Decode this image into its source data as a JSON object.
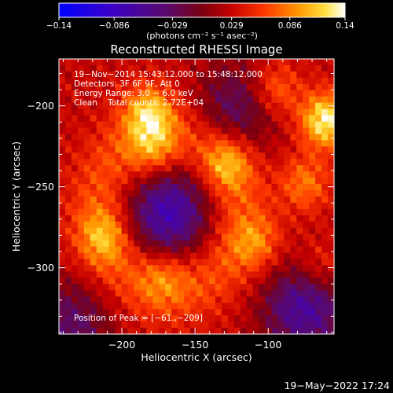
{
  "chart_data": {
    "type": "heatmap",
    "title": "Reconstructed RHESSI Image",
    "xlabel": "Heliocentric X (arcsec)",
    "ylabel": "Heliocentric Y (arcsec)",
    "xlim": [
      -243,
      -55
    ],
    "ylim": [
      -341,
      -171
    ],
    "x_ticks": [
      -200,
      -150,
      -100
    ],
    "y_ticks": [
      -200,
      -250,
      -300
    ],
    "x_tick_labels": [
      "−200",
      "−150",
      "−100"
    ],
    "y_tick_labels": [
      "−200",
      "−250",
      "−300"
    ],
    "colorbar": {
      "range": [
        -0.14,
        0.14
      ],
      "ticks": [
        -0.14,
        -0.086,
        -0.029,
        0.029,
        0.086,
        0.14
      ],
      "tick_labels": [
        "−0.14",
        "−0.086",
        "−0.029",
        "0.029",
        "0.086",
        "0.14"
      ],
      "units": "(photons cm⁻² s⁻¹ asec⁻²)",
      "colormap": "blue-purple-red-orange-yellow-white"
    },
    "annotations": [
      "19−Nov−2014 15:43:12.000 to 15:48:12.000",
      "Detectors: 3F 6F 9F, Att 0",
      "Energy Range: 3.0 − 6.0 keV",
      "Clean    Total counts: 2.72E+04"
    ],
    "peak_label": "Position of Peak = [−61.,−209]",
    "peak": {
      "x": -61,
      "y": -209
    },
    "bright_regions": [
      {
        "x": -61,
        "y": -209,
        "level": 0.14
      },
      {
        "x": -182,
        "y": -204,
        "level": 0.1
      },
      {
        "x": -95,
        "y": -190,
        "level": 0.07
      },
      {
        "x": -128,
        "y": -235,
        "level": 0.08
      },
      {
        "x": -178,
        "y": -228,
        "level": 0.06
      },
      {
        "x": -212,
        "y": -281,
        "level": 0.07
      },
      {
        "x": -172,
        "y": -305,
        "level": 0.05
      },
      {
        "x": -108,
        "y": -285,
        "level": 0.06
      },
      {
        "x": -75,
        "y": -248,
        "level": 0.07
      },
      {
        "x": -65,
        "y": -300,
        "level": 0.05
      }
    ],
    "dark_regions": [
      {
        "x": -168,
        "y": -266,
        "level": -0.1
      },
      {
        "x": -75,
        "y": -325,
        "level": -0.09
      },
      {
        "x": -122,
        "y": -202,
        "level": -0.06
      },
      {
        "x": -235,
        "y": -335,
        "level": -0.06
      }
    ]
  },
  "timestamp": "19−May−2022 17:24"
}
